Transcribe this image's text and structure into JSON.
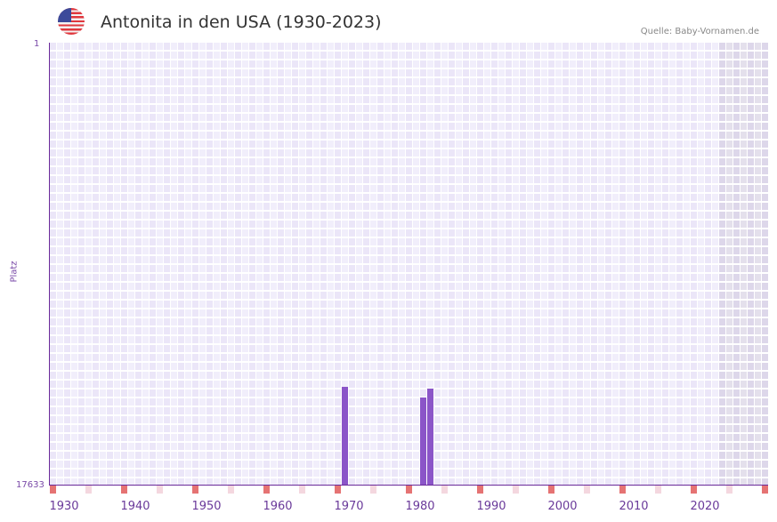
{
  "header": {
    "title": "Antonita in den USA (1930-2023)",
    "source": "Quelle: Baby-Vornamen.de",
    "flag_icon": "us-flag-icon"
  },
  "chart_data": {
    "type": "bar",
    "title": "Antonita in den USA (1930-2023)",
    "xlabel": "",
    "ylabel": "Platz",
    "y_axis_inverted": true,
    "ylim": [
      17633,
      1
    ],
    "y_ticks": [
      "1",
      "17633"
    ],
    "x_ticks": [
      "1930",
      "1940",
      "1950",
      "1960",
      "1970",
      "1980",
      "1990",
      "2000",
      "2010",
      "2020"
    ],
    "x_range": [
      1928,
      2028
    ],
    "shaded_future_from": 2022,
    "grid": true,
    "categories": [
      1969,
      1980,
      1981
    ],
    "series": [
      {
        "name": "Platz",
        "values": [
          13730,
          14160,
          13800
        ]
      }
    ],
    "colors": {
      "bar": "#8b55c8",
      "axis": "#6a2a9a",
      "decade_mark": "#e57373",
      "halfdecade_mark": "#f4d7df"
    }
  },
  "labels": {
    "y_top": "1",
    "y_bottom": "17633",
    "y_title": "Platz"
  }
}
